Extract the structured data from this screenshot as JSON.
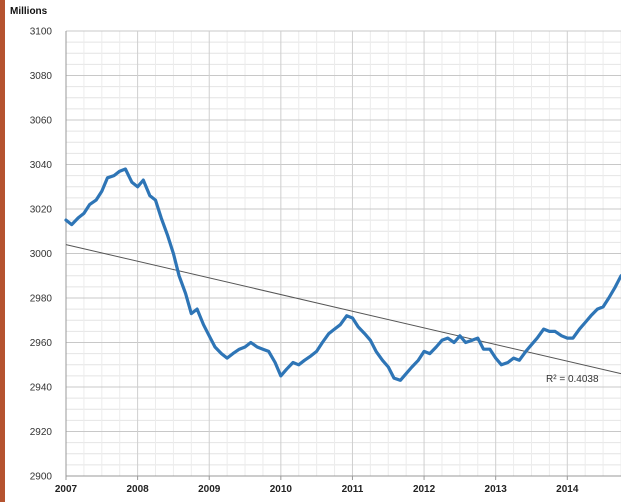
{
  "chart_data": {
    "type": "line",
    "title": "",
    "unit_label": "Millions",
    "xlabel": "",
    "ylabel": "",
    "xlim": [
      2007,
      2014.75
    ],
    "ylim": [
      2900,
      3100
    ],
    "y_ticks": [
      2900,
      2920,
      2940,
      2960,
      2980,
      3000,
      3020,
      3040,
      3060,
      3080,
      3100
    ],
    "x_ticks": [
      "2007",
      "2008",
      "2009",
      "2010",
      "2011",
      "2012",
      "2013",
      "2014"
    ],
    "grid": true,
    "series": [
      {
        "color": "#2e75b6",
        "x": [
          2007.0,
          2007.08,
          2007.17,
          2007.25,
          2007.33,
          2007.42,
          2007.5,
          2007.58,
          2007.67,
          2007.75,
          2007.83,
          2007.92,
          2008.0,
          2008.08,
          2008.17,
          2008.25,
          2008.33,
          2008.42,
          2008.5,
          2008.58,
          2008.67,
          2008.75,
          2008.83,
          2008.92,
          2009.0,
          2009.08,
          2009.17,
          2009.25,
          2009.33,
          2009.42,
          2009.5,
          2009.58,
          2009.67,
          2009.75,
          2009.83,
          2009.92,
          2010.0,
          2010.08,
          2010.17,
          2010.25,
          2010.33,
          2010.42,
          2010.5,
          2010.58,
          2010.67,
          2010.75,
          2010.83,
          2010.92,
          2011.0,
          2011.08,
          2011.17,
          2011.25,
          2011.33,
          2011.42,
          2011.5,
          2011.58,
          2011.67,
          2011.75,
          2011.83,
          2011.92,
          2012.0,
          2012.08,
          2012.17,
          2012.25,
          2012.33,
          2012.42,
          2012.5,
          2012.58,
          2012.67,
          2012.75,
          2012.83,
          2012.92,
          2013.0,
          2013.08,
          2013.17,
          2013.25,
          2013.33,
          2013.42,
          2013.5,
          2013.58,
          2013.67,
          2013.75,
          2013.83,
          2013.92,
          2014.0,
          2014.08,
          2014.17,
          2014.25,
          2014.33,
          2014.42,
          2014.5,
          2014.58,
          2014.67,
          2014.75
        ],
        "values": [
          3015,
          3013,
          3016,
          3018,
          3022,
          3024,
          3028,
          3034,
          3035,
          3037,
          3038,
          3032,
          3030,
          3033,
          3026,
          3024,
          3016,
          3008,
          3000,
          2990,
          2982,
          2973,
          2975,
          2968,
          2963,
          2958,
          2955,
          2953,
          2955,
          2957,
          2958,
          2960,
          2958,
          2957,
          2956,
          2951,
          2945,
          2948,
          2951,
          2950,
          2952,
          2954,
          2956,
          2960,
          2964,
          2966,
          2968,
          2972,
          2971,
          2967,
          2964,
          2961,
          2956,
          2952,
          2949,
          2944,
          2943,
          2946,
          2949,
          2952,
          2956,
          2955,
          2958,
          2961,
          2962,
          2960,
          2963,
          2960,
          2961,
          2962,
          2957,
          2957,
          2953,
          2950,
          2951,
          2953,
          2952,
          2956,
          2959,
          2962,
          2966,
          2965,
          2965,
          2963,
          2962,
          2962,
          2966,
          2969,
          2972,
          2975,
          2976,
          2980,
          2985,
          2990
        ]
      }
    ],
    "trendline": {
      "start": [
        2007.0,
        3004
      ],
      "end": [
        2014.75,
        2946
      ],
      "color": "#555555",
      "label": "R² = 0.4038"
    }
  }
}
